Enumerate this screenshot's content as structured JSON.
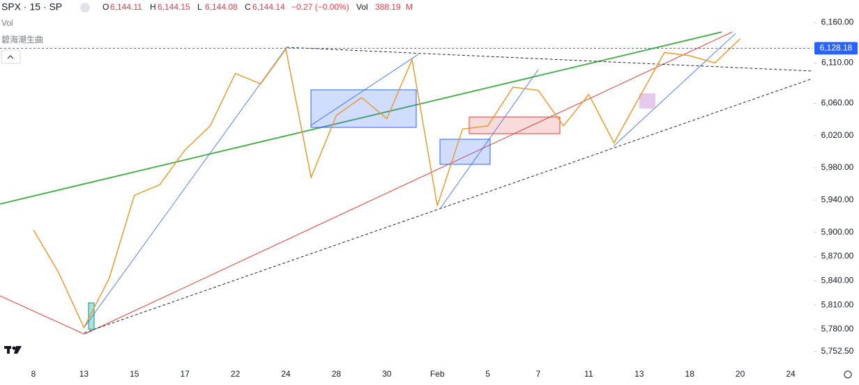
{
  "header": {
    "symbol": "SPX · 15 · SP",
    "ohlc": [
      {
        "key": "O",
        "value": "6,144.11"
      },
      {
        "key": "H",
        "value": "6,144.15"
      },
      {
        "key": "L",
        "value": "6,144.08"
      },
      {
        "key": "C",
        "value": "6,144.14"
      }
    ],
    "change": "−0.27 (−0.00%)",
    "volume_key": "Vol",
    "volume": "388.19",
    "volume_unit": "M",
    "indicators": [
      "Vol",
      "碧海潮生曲"
    ]
  },
  "chart_data": {
    "type": "line",
    "categories": [
      "8",
      null,
      "13",
      null,
      "15",
      null,
      "17",
      null,
      "22",
      null,
      "24",
      null,
      "28",
      null,
      "30",
      null,
      "Feb",
      null,
      "5",
      null,
      "7",
      null,
      "11",
      null,
      "13",
      null,
      "18",
      null,
      "20",
      null,
      "24"
    ],
    "series": [
      {
        "color": "#e89a2c",
        "values": [
          5903,
          5850,
          5782,
          5843,
          5946,
          5959,
          6002,
          6032,
          6097,
          6084,
          6127,
          5968,
          6045,
          6067,
          6041,
          6114,
          5933,
          6028,
          6032,
          6080,
          6076,
          6032,
          6071,
          6011,
          6067,
          6123,
          6119,
          6110,
          6140,
          null,
          null
        ]
      }
    ],
    "ylim": [
      5735,
      6188
    ],
    "yticks": [
      {
        "value": 6160,
        "label": "6,160.00"
      },
      {
        "value": 6110,
        "label": "6,110.00"
      },
      {
        "value": 6060,
        "label": "6,060.00"
      },
      {
        "value": 6020,
        "label": "6,020.00"
      },
      {
        "value": 5980,
        "label": "5,980.00"
      },
      {
        "value": 5940,
        "label": "5,940.00"
      },
      {
        "value": 5900,
        "label": "5,900.00"
      },
      {
        "value": 5870,
        "label": "5,870.00"
      },
      {
        "value": 5840,
        "label": "5,840.00"
      },
      {
        "value": 5810,
        "label": "5,810.00"
      },
      {
        "value": 5780,
        "label": "5,780.00"
      },
      {
        "value": 5752.5,
        "label": "5,752.50"
      }
    ],
    "last_price": {
      "value": 6128.18,
      "label": "6,128.18"
    },
    "last_price_color": "#2962ff"
  }
}
